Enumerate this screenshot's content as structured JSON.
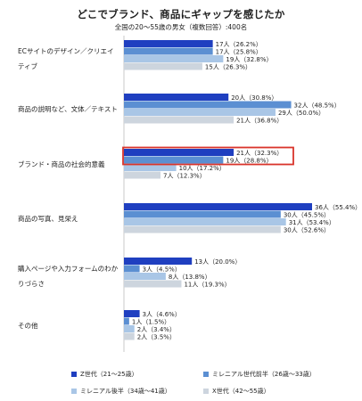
{
  "title": "どこでブランド、商品にギャップを感じたか",
  "subtitle": "全国の20～55歳の男女（複数回答）:400名",
  "chart_data": {
    "type": "bar",
    "orientation": "horizontal",
    "categories": [
      [
        "ECサイトのデザイン／クリエイ",
        "ティブ"
      ],
      [
        "商品の説明など、文体／テキスト"
      ],
      [
        "ブランド・商品の社会的意義"
      ],
      [
        "商品の写真、見栄え"
      ],
      [
        "購入ページや入力フォームのわか",
        "りづらさ"
      ],
      [
        "その他"
      ]
    ],
    "series": [
      {
        "name": "Z世代（21～25歳）",
        "color": "#1f3fc0",
        "values": [
          17,
          20,
          21,
          36,
          13,
          3
        ],
        "labels": [
          "17人（26.2%）",
          "20人（30.8%）",
          "21人（32.3%）",
          "36人（55.4%）",
          "13人（20.0%）",
          "3人（4.6%）"
        ]
      },
      {
        "name": "ミレニアル世代前半（26歳～33歳）",
        "color": "#5b8fd2",
        "values": [
          17,
          32,
          19,
          30,
          3,
          1
        ],
        "labels": [
          "17人（25.8%）",
          "32人（48.5%）",
          "19人（28.8%）",
          "30人（45.5%）",
          "3人（4.5%）",
          "1人（1.5%）"
        ]
      },
      {
        "name": "ミレニアル後半（34歳～41歳）",
        "color": "#a9c6e6",
        "values": [
          19,
          29,
          10,
          31,
          8,
          2
        ],
        "labels": [
          "19人（32.8%）",
          "29人（50.0%）",
          "10人（17.2%）",
          "31人（53.4%）",
          "8人（13.8%）",
          "2人（3.4%）"
        ]
      },
      {
        "name": "X世代（42～55歳）",
        "color": "#cdd5de",
        "values": [
          15,
          21,
          7,
          30,
          11,
          2
        ],
        "labels": [
          "15人（26.3%）",
          "21人（36.8%）",
          "7人（12.3%）",
          "30人（52.6%）",
          "11人（19.3%）",
          "2人（3.5%）"
        ]
      }
    ],
    "highlight": {
      "category_index": 2,
      "series_indices": [
        0,
        1
      ],
      "color": "#d9342b"
    },
    "xlim": [
      0,
      36
    ],
    "grid": false,
    "legend_position": "bottom"
  }
}
